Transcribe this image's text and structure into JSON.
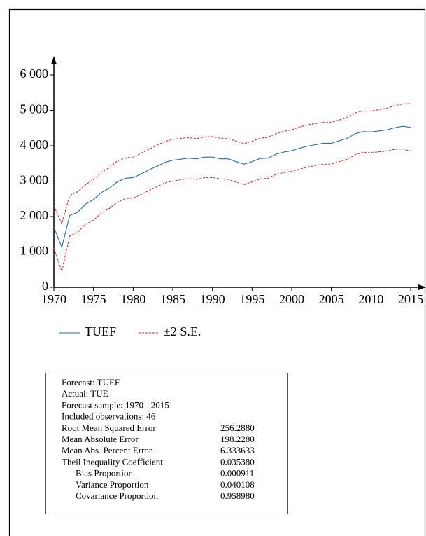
{
  "chart_data": {
    "type": "line",
    "x": [
      1970,
      1971,
      1972,
      1973,
      1974,
      1975,
      1976,
      1977,
      1978,
      1979,
      1980,
      1981,
      1982,
      1983,
      1984,
      1985,
      1986,
      1987,
      1988,
      1989,
      1990,
      1991,
      1992,
      1993,
      1994,
      1995,
      1996,
      1997,
      1998,
      1999,
      2000,
      2001,
      2002,
      2003,
      2004,
      2005,
      2006,
      2007,
      2008,
      2009,
      2010,
      2011,
      2012,
      2013,
      2014,
      2015
    ],
    "series": [
      {
        "name": "TUEF",
        "color": "#1f6fa8",
        "values": [
          1700,
          1130,
          2030,
          2120,
          2350,
          2480,
          2680,
          2800,
          2980,
          3080,
          3100,
          3200,
          3320,
          3420,
          3530,
          3590,
          3620,
          3650,
          3630,
          3680,
          3680,
          3630,
          3630,
          3550,
          3480,
          3550,
          3640,
          3650,
          3760,
          3820,
          3860,
          3930,
          3990,
          4030,
          4070,
          4070,
          4140,
          4210,
          4340,
          4400,
          4390,
          4420,
          4450,
          4510,
          4550,
          4520
        ]
      }
    ],
    "band": {
      "name": "±2 S.E.",
      "color": "#e8262a",
      "upper": [
        2300,
        1800,
        2600,
        2700,
        2900,
        3050,
        3250,
        3380,
        3570,
        3660,
        3680,
        3790,
        3900,
        4010,
        4120,
        4180,
        4210,
        4230,
        4200,
        4250,
        4260,
        4210,
        4200,
        4130,
        4060,
        4130,
        4210,
        4240,
        4340,
        4410,
        4450,
        4530,
        4590,
        4630,
        4660,
        4660,
        4730,
        4800,
        4930,
        4980,
        4980,
        5020,
        5060,
        5130,
        5180,
        5190
      ],
      "lower": [
        1100,
        450,
        1450,
        1550,
        1780,
        1900,
        2100,
        2230,
        2400,
        2510,
        2520,
        2620,
        2740,
        2840,
        2950,
        3000,
        3040,
        3070,
        3050,
        3100,
        3100,
        3060,
        3050,
        2970,
        2900,
        2980,
        3060,
        3080,
        3190,
        3240,
        3280,
        3340,
        3400,
        3440,
        3480,
        3480,
        3550,
        3620,
        3750,
        3810,
        3800,
        3830,
        3850,
        3900,
        3910,
        3850
      ]
    },
    "xlim": [
      1970,
      2015
    ],
    "xticks": [
      1970,
      1975,
      1980,
      1985,
      1990,
      1995,
      2000,
      2005,
      2010,
      2015
    ],
    "ylim": [
      0,
      6000
    ],
    "yticks": [
      0,
      {
        "value": 1000,
        "label": "1 000"
      },
      {
        "value": 2000,
        "label": "2 000"
      },
      {
        "value": 3000,
        "label": "3 000"
      },
      {
        "value": 4000,
        "label": "4 000"
      },
      {
        "value": 5000,
        "label": "5 000"
      },
      {
        "value": 6000,
        "label": "6 000"
      }
    ]
  },
  "stats": {
    "lines": [
      "Forecast: TUEF",
      "Actual: TUE",
      "Forecast sample: 1970 - 2015",
      "Included observations: 46"
    ],
    "rows": [
      [
        "Root Mean Squared Error",
        "256.2880"
      ],
      [
        "Mean Absolute Error",
        "198.2280"
      ],
      [
        "Mean Abs. Percent Error",
        "6.333633"
      ],
      [
        "Theil Inequality Coefficient",
        "0.035380"
      ],
      [
        "Bias Proportion",
        "0.000911"
      ],
      [
        "Variance Proportion",
        "0.040108"
      ],
      [
        "Covariance Proportion",
        "0.958980"
      ]
    ]
  }
}
